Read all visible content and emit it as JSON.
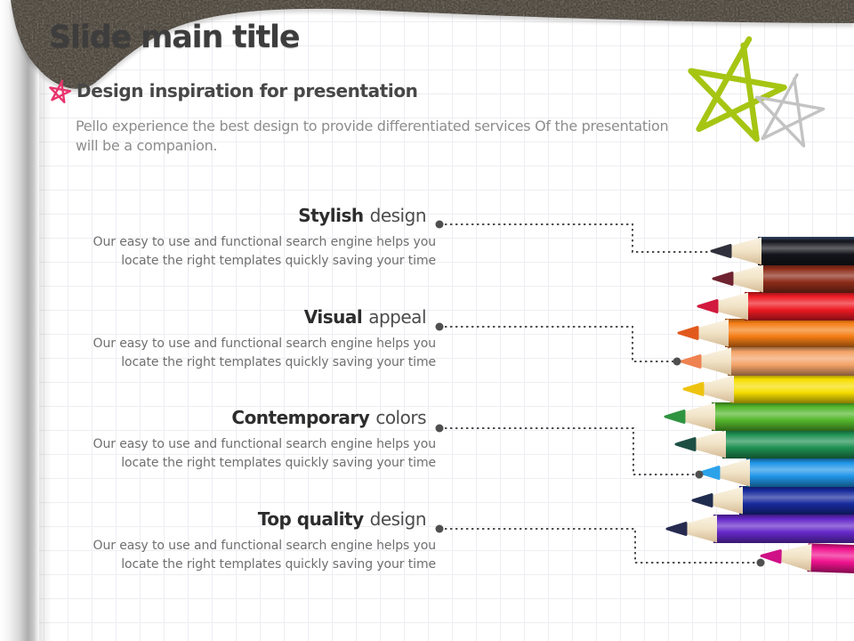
{
  "title": "Slide main title",
  "subtitle": "Design inspiration for presentation",
  "intro_lines": [
    "Pello experience the best design to provide differentiated services Of the presentation",
    "will be a companion."
  ],
  "features": [
    {
      "emphasis": "Stylish",
      "rest": "design",
      "body_lines": [
        "Our easy to use and functional search engine helps you",
        "locate the right templates quickly saving your time"
      ]
    },
    {
      "emphasis": "Visual",
      "rest": "appeal",
      "body_lines": [
        "Our easy to use and functional search engine helps you",
        "locate the right templates quickly saving your time"
      ]
    },
    {
      "emphasis": "Contemporary",
      "rest": "colors",
      "body_lines": [
        "Our easy to use and functional search engine helps you",
        "locate the right templates quickly saving your time"
      ]
    },
    {
      "emphasis": "Top quality",
      "rest": "design",
      "body_lines": [
        "Our easy to use and functional search engine helps you",
        "locate the right templates quickly saving your time"
      ]
    }
  ],
  "decor": {
    "band_color": "#4a443b",
    "connector_color": "#4f4f4f",
    "stars": {
      "pink": "#e8336d",
      "green": "#a6c513",
      "gray": "#c3c3c3"
    }
  },
  "pencils": [
    {
      "name": "black",
      "color": "#14151b",
      "tip": "#30303c",
      "edge": "#31405f"
    },
    {
      "name": "brown",
      "color": "#8e2d1a",
      "tip": "#6f2330"
    },
    {
      "name": "red",
      "color": "#ee1b24",
      "tip": "#d2193e"
    },
    {
      "name": "orange",
      "color": "#f57d15",
      "tip": "#e2591d"
    },
    {
      "name": "peach",
      "color": "#f3a367",
      "tip": "#ee8251"
    },
    {
      "name": "yellow",
      "color": "#f6de00",
      "tip": "#eec310"
    },
    {
      "name": "light-green",
      "color": "#54b72c",
      "tip": "#2f9440"
    },
    {
      "name": "dark-green",
      "color": "#1f9152",
      "tip": "#1d4f44"
    },
    {
      "name": "sky-blue",
      "color": "#2096e8",
      "tip": "#2ba2ea"
    },
    {
      "name": "navy",
      "color": "#172a9c",
      "tip": "#202c4e"
    },
    {
      "name": "purple",
      "color": "#6529c9",
      "tip": "#272b50"
    },
    {
      "name": "magenta",
      "color": "#f0138f",
      "tip": "#cf1086"
    }
  ]
}
